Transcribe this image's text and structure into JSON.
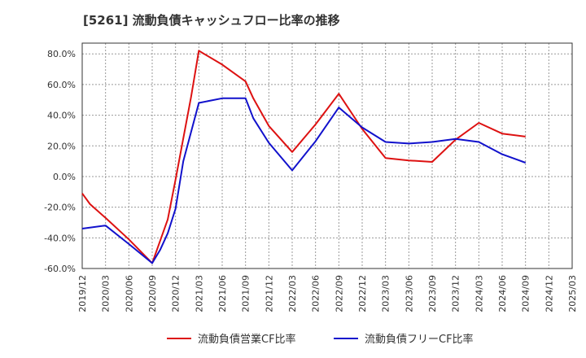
{
  "chart_data": {
    "type": "line",
    "title": "[5261]  流動負債キャッシュフロー比率の推移",
    "x": [
      "2019/12",
      "2020/03",
      "2020/06",
      "2020/09",
      "2020/12",
      "2021/03",
      "2021/06",
      "2021/09",
      "2021/12",
      "2022/03",
      "2022/06",
      "2022/09",
      "2022/12",
      "2023/03",
      "2023/06",
      "2023/09",
      "2023/12",
      "2024/03",
      "2024/06",
      "2024/09",
      "2024/12",
      "2025/03"
    ],
    "yticks": [
      "80.0%",
      "60.0%",
      "40.0%",
      "20.0%",
      "0.0%",
      "-20.0%",
      "-40.0%",
      "-60.0%"
    ],
    "ylim": [
      -60,
      87
    ],
    "grid": true,
    "legend_position": "bottom",
    "series": [
      {
        "name": "流動負債営業CF比率",
        "color": "#dd1111",
        "points": [
          [
            "2019/12",
            -11.0
          ],
          [
            "2020/01",
            -18.0
          ],
          [
            "2020/03",
            -27.0
          ],
          [
            "2020/06",
            -41.0
          ],
          [
            "2020/09",
            -56.5
          ],
          [
            "2020/11",
            -28.0
          ],
          [
            "2020/12",
            -2.0
          ],
          [
            "2021/02",
            52.0
          ],
          [
            "2021/03",
            82.0
          ],
          [
            "2021/06",
            73.0
          ],
          [
            "2021/09",
            62.0
          ],
          [
            "2021/10",
            51.0
          ],
          [
            "2021/12",
            33.0
          ],
          [
            "2022/03",
            16.0
          ],
          [
            "2022/06",
            34.0
          ],
          [
            "2022/09",
            54.0
          ],
          [
            "2022/12",
            31.0
          ],
          [
            "2023/03",
            12.0
          ],
          [
            "2023/06",
            10.5
          ],
          [
            "2023/09",
            9.5
          ],
          [
            "2023/12",
            24.0
          ],
          [
            "2024/03",
            35.0
          ],
          [
            "2024/06",
            28.0
          ],
          [
            "2024/09",
            26.0
          ]
        ]
      },
      {
        "name": "流動負債フリーCF比率",
        "color": "#1111cc",
        "points": [
          [
            "2019/12",
            -34.0
          ],
          [
            "2020/03",
            -32.0
          ],
          [
            "2020/06",
            -44.0
          ],
          [
            "2020/09",
            -56.5
          ],
          [
            "2020/10",
            -48.0
          ],
          [
            "2020/11",
            -37.0
          ],
          [
            "2020/12",
            -21.0
          ],
          [
            "2021/01",
            10.0
          ],
          [
            "2021/03",
            48.0
          ],
          [
            "2021/06",
            51.0
          ],
          [
            "2021/09",
            51.0
          ],
          [
            "2021/10",
            38.0
          ],
          [
            "2021/12",
            22.0
          ],
          [
            "2022/03",
            4.0
          ],
          [
            "2022/06",
            23.0
          ],
          [
            "2022/09",
            45.0
          ],
          [
            "2022/12",
            32.0
          ],
          [
            "2023/03",
            22.5
          ],
          [
            "2023/06",
            21.5
          ],
          [
            "2023/09",
            22.5
          ],
          [
            "2023/12",
            24.5
          ],
          [
            "2024/03",
            22.5
          ],
          [
            "2024/06",
            14.5
          ],
          [
            "2024/09",
            9.0
          ]
        ]
      }
    ]
  }
}
